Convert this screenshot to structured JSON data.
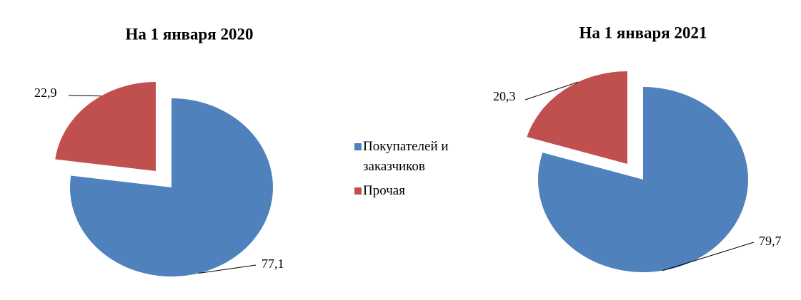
{
  "chart_data": [
    {
      "type": "pie",
      "title": "На 1 января 2020",
      "categories": [
        "Покупателей и заказчиков",
        "Прочая"
      ],
      "values": [
        77.1,
        22.9
      ],
      "value_labels": [
        "77,1",
        "22,9"
      ],
      "colors": [
        "#4f81bd",
        "#c0504d"
      ]
    },
    {
      "type": "pie",
      "title": "На 1 января 2021",
      "categories": [
        "Покупателей и заказчиков",
        "Прочая"
      ],
      "values": [
        79.7,
        20.3
      ],
      "value_labels": [
        "79,7",
        "20,3"
      ],
      "colors": [
        "#4f81bd",
        "#c0504d"
      ]
    }
  ]
}
